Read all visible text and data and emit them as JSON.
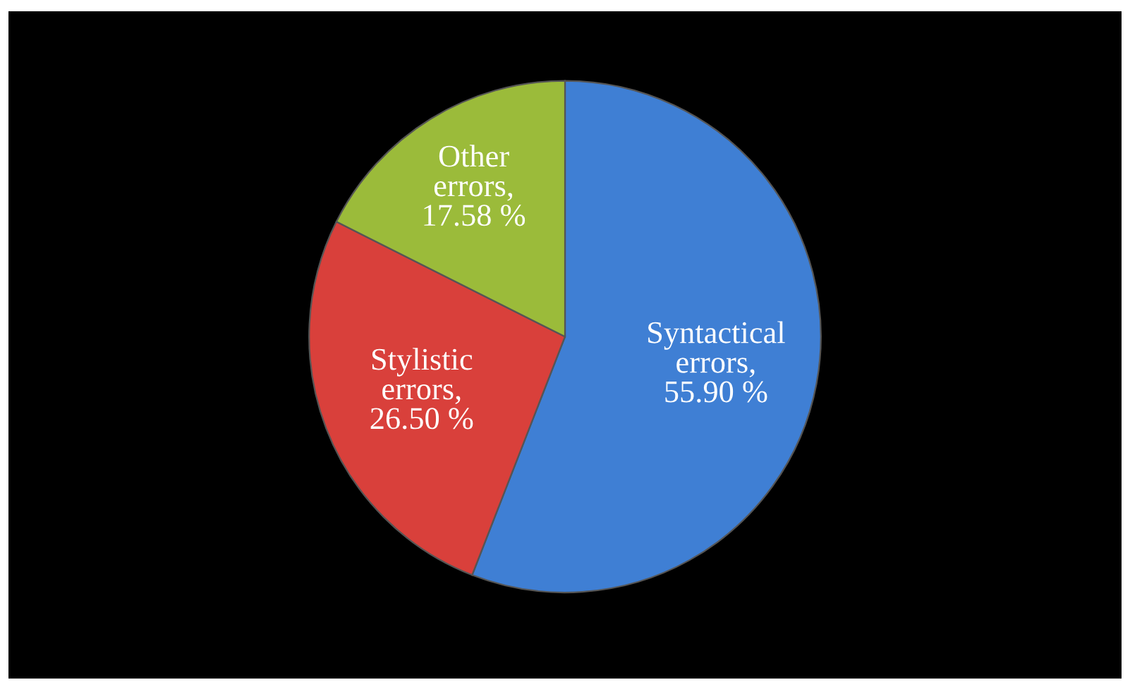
{
  "chart_data": {
    "type": "pie",
    "categories": [
      "Syntactical errors",
      "Stylistic errors",
      "Other errors"
    ],
    "values": [
      55.9,
      26.5,
      17.58
    ],
    "colors": [
      "#3f7fd4",
      "#d9403b",
      "#9bbb3a"
    ],
    "value_labels": [
      ", 55.90 %",
      ", 26.50 %",
      ", 17.58 %"
    ],
    "legend": false
  }
}
